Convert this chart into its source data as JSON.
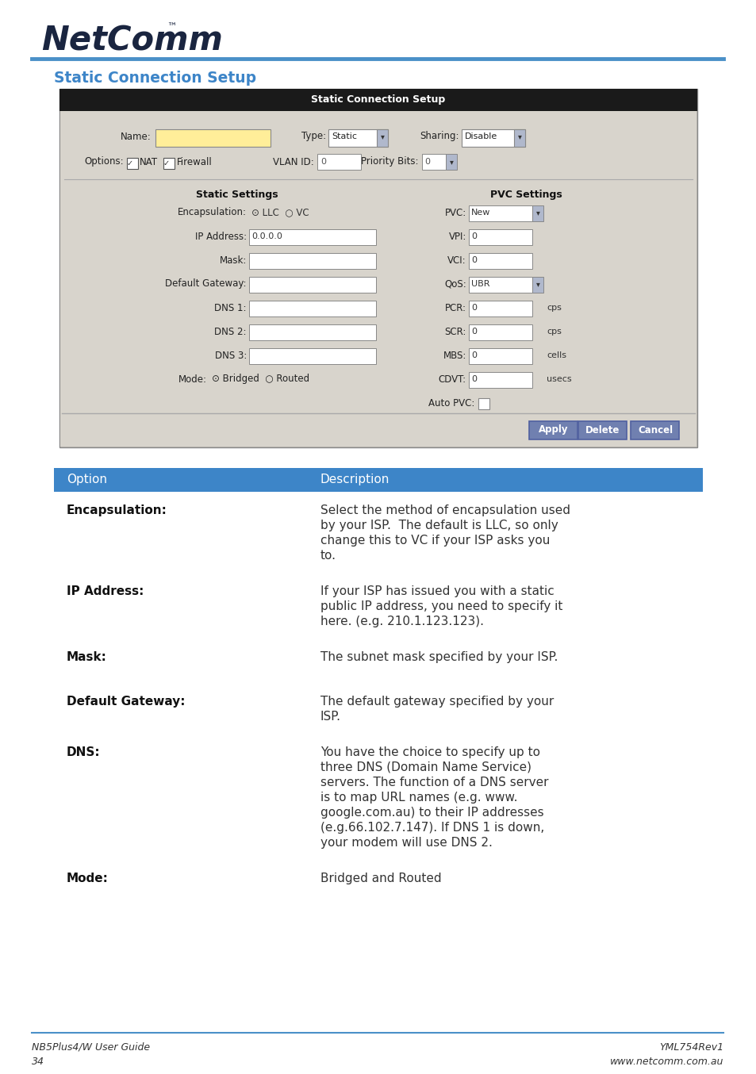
{
  "background": "#ffffff",
  "blue_line_color": "#4a90c8",
  "section_title": "Static Connection Setup",
  "section_title_color": "#3d85c8",
  "table_header_bg": "#3d85c8",
  "table_header_text": "#ffffff",
  "table_option_col": "Option",
  "table_desc_col": "Description",
  "footer_left_line1": "NB5Plus4/W User Guide",
  "footer_left_line2": "34",
  "footer_right_line1": "YML754Rev1",
  "footer_right_line2": "www.netcomm.com.au",
  "table_rows": [
    {
      "option": "Encapsulation:",
      "desc_lines": [
        "Select the method of encapsulation used",
        "by your ISP.  The default is LLC, so only",
        "change this to VC if your ISP asks you",
        "to."
      ]
    },
    {
      "option": "IP Address:",
      "desc_lines": [
        "If your ISP has issued you with a static",
        "public IP address, you need to specify it",
        "here. (e.g. 210.1.123.123)."
      ]
    },
    {
      "option": "Mask:",
      "desc_lines": [
        "The subnet mask specified by your ISP."
      ]
    },
    {
      "option": "Default Gateway:",
      "desc_lines": [
        "The default gateway specified by your",
        "ISP."
      ]
    },
    {
      "option": "DNS:",
      "desc_lines": [
        "You have the choice to specify up to",
        "three DNS (Domain Name Service)",
        "servers. The function of a DNS server",
        "is to map URL names (e.g. www.",
        "google.com.au) to their IP addresses",
        "(e.g.66.102.7.147). If DNS 1 is down,",
        "your modem will use DNS 2."
      ]
    },
    {
      "option": "Mode:",
      "desc_lines": [
        "Bridged and Routed"
      ]
    }
  ],
  "screenshot_header_bg": "#1a1a1a",
  "screenshot_header_text": "#ffffff",
  "screenshot_title": "Static Connection Setup",
  "form_bg": "#d8d4cc",
  "form_bg2": "#c8c4bb",
  "input_yellow": "#ffee99",
  "input_white": "#ffffff",
  "button_bg": "#7080b0",
  "button_border": "#5060a0"
}
